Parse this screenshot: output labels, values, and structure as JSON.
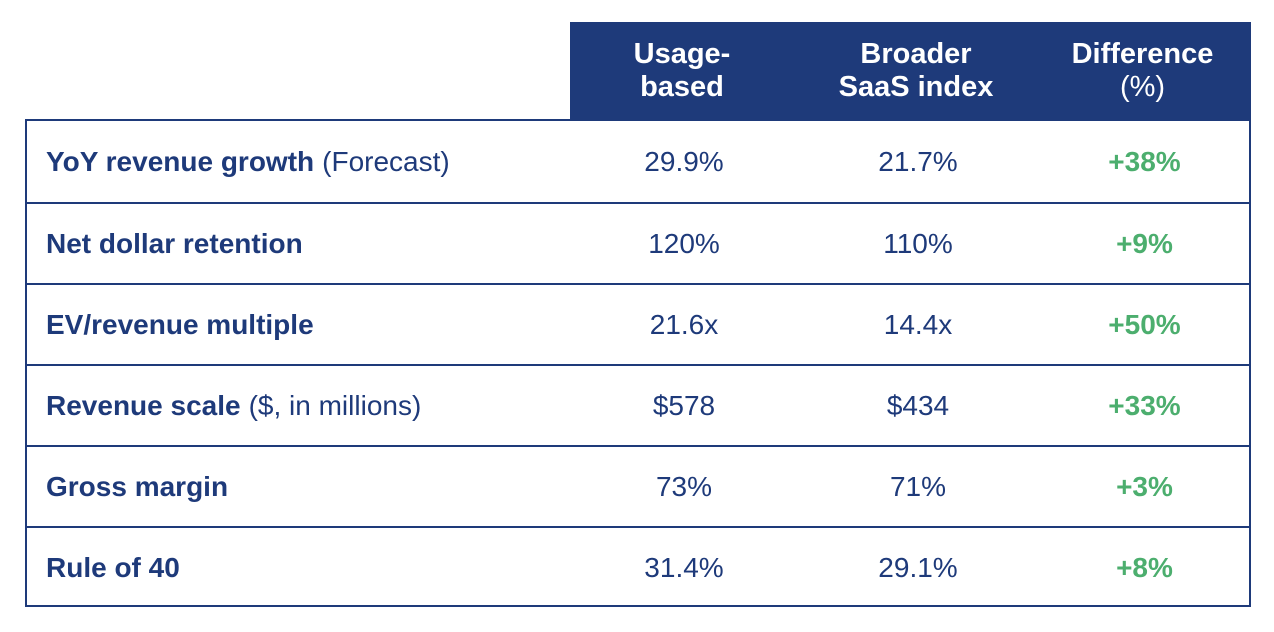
{
  "header": {
    "col1": "Usage-\nbased",
    "col2": "Broader\nSaaS index",
    "col3": "Difference",
    "col3_unit": "(%)"
  },
  "rows": [
    {
      "metric": "YoY revenue growth",
      "note": "(Forecast)",
      "usage": "29.9%",
      "saas": "21.7%",
      "diff": "+38%"
    },
    {
      "metric": "Net dollar retention",
      "note": "",
      "usage": "120%",
      "saas": "110%",
      "diff": "+9%"
    },
    {
      "metric": "EV/revenue multiple",
      "note": "",
      "usage": "21.6x",
      "saas": "14.4x",
      "diff": "+50%"
    },
    {
      "metric": "Revenue scale",
      "note": "($, in millions)",
      "usage": "$578",
      "saas": "$434",
      "diff": "+33%"
    },
    {
      "metric": "Gross margin",
      "note": "",
      "usage": "73%",
      "saas": "71%",
      "diff": "+3%"
    },
    {
      "metric": "Rule of 40",
      "note": "",
      "usage": "31.4%",
      "saas": "29.1%",
      "diff": "+8%"
    }
  ],
  "colors": {
    "navy": "#1e3a7a",
    "green": "#4cae6e",
    "header_text": "#ffffff"
  },
  "chart_data": {
    "type": "table",
    "columns": [
      "",
      "Usage-based",
      "Broader SaaS index",
      "Difference (%)"
    ],
    "rows": [
      [
        "YoY revenue growth (Forecast)",
        "29.9%",
        "21.7%",
        "+38%"
      ],
      [
        "Net dollar retention",
        "120%",
        "110%",
        "+9%"
      ],
      [
        "EV/revenue multiple",
        "21.6x",
        "14.4x",
        "+50%"
      ],
      [
        "Revenue scale ($, in millions)",
        "$578",
        "$434",
        "+33%"
      ],
      [
        "Gross margin",
        "73%",
        "71%",
        "+3%"
      ],
      [
        "Rule of 40",
        "31.4%",
        "29.1%",
        "+8%"
      ]
    ]
  }
}
